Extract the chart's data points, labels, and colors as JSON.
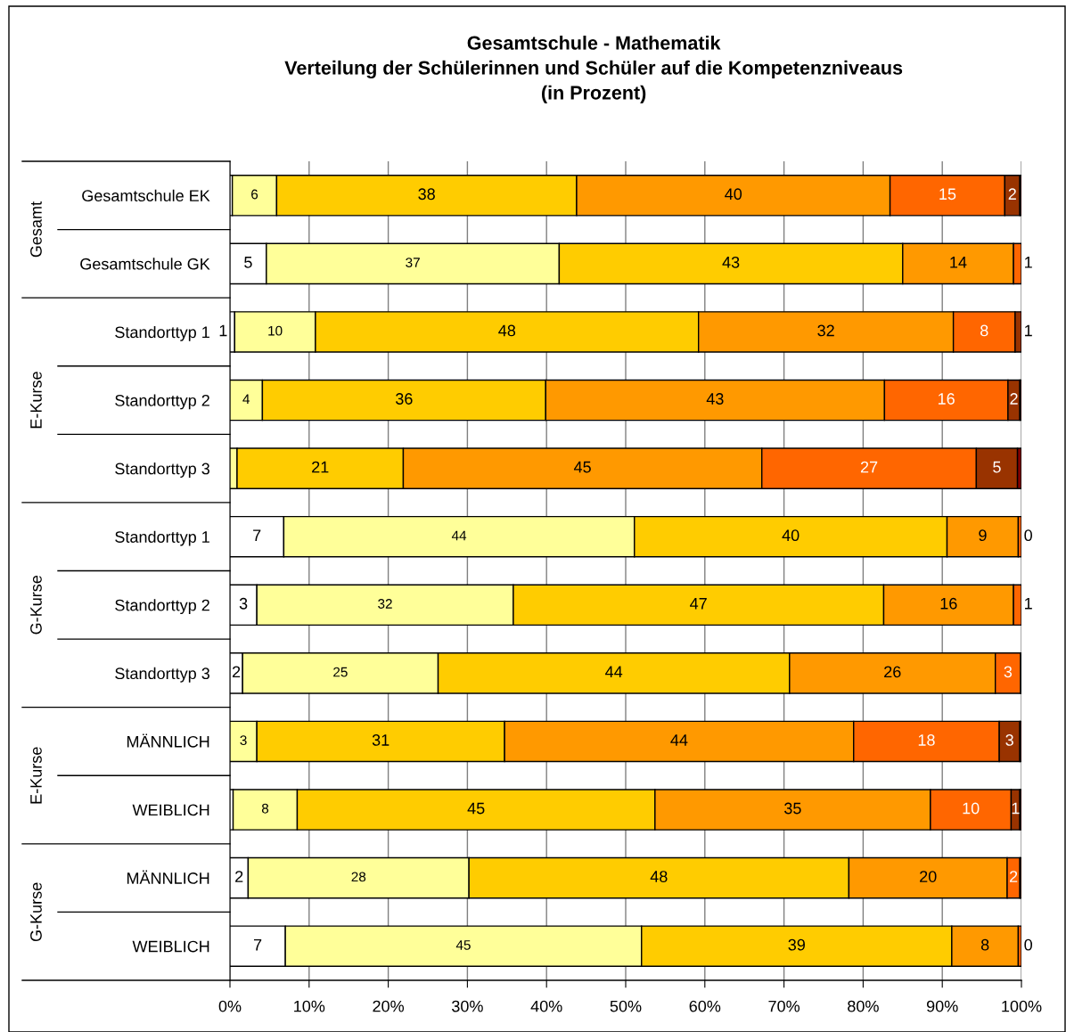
{
  "chart_data": {
    "type": "bar",
    "orientation": "horizontal",
    "stacked": true,
    "title": "Gesamtschule - Mathematik\nVerteilung der Schülerinnen und Schüler auf die Kompetenzniveaus\n(in Prozent)",
    "categories": [
      "Gesamtschule EK",
      "Gesamtschule GK",
      "Standorttyp 1",
      "Standorttyp 2",
      "Standorttyp 3",
      "Standorttyp 1",
      "Standorttyp 2",
      "Standorttyp 3",
      "MÄNNLICH",
      "WEIBLICH",
      "MÄNNLICH",
      "WEIBLICH"
    ],
    "annotations": [
      "Gesamt",
      "E-Kurse",
      "G-Kurse",
      "E-Kurse",
      "G-Kurse"
    ],
    "series": [
      {
        "color": "#ffffff",
        "values": [
          0.3,
          4.6,
          0.6,
          null,
          null,
          6.8,
          3.4,
          1.6,
          null,
          0.4,
          2.3,
          7.0
        ],
        "value_labels": [
          null,
          "5",
          "1",
          null,
          null,
          "7",
          "3",
          "2",
          null,
          null,
          "2",
          "7"
        ]
      },
      {
        "color": "#ffff99",
        "values": [
          5.6,
          37.0,
          10.2,
          4.1,
          0.9,
          44.3,
          32.4,
          24.7,
          3.4,
          8.1,
          27.9,
          45.0
        ],
        "value_labels": [
          "6",
          "37",
          "10",
          "4",
          null,
          "44",
          "32",
          "25",
          "3",
          "8",
          "28",
          "45"
        ]
      },
      {
        "color": "#ffcc00",
        "values": [
          37.9,
          43.4,
          48.4,
          35.8,
          21.0,
          39.5,
          46.8,
          44.4,
          31.3,
          45.2,
          48.0,
          39.2
        ],
        "value_labels": [
          "38",
          "43",
          "48",
          "36",
          "21",
          "40",
          "47",
          "44",
          "31",
          "45",
          "48",
          "39"
        ]
      },
      {
        "color": "#ff9900",
        "values": [
          39.6,
          14.0,
          32.2,
          42.8,
          45.3,
          9.0,
          16.4,
          26.0,
          44.1,
          34.8,
          20.0,
          8.4
        ],
        "value_labels": [
          "40",
          "14",
          "32",
          "43",
          "45",
          "9",
          "16",
          "26",
          "44",
          "35",
          "20",
          "8"
        ]
      },
      {
        "color": "#ff6600",
        "values": [
          14.5,
          1.0,
          7.8,
          15.6,
          27.1,
          0.4,
          1.0,
          3.2,
          18.4,
          10.2,
          1.6,
          0.4
        ],
        "value_labels": [
          "15",
          "1",
          "8",
          "16",
          "27",
          "0",
          "1",
          "3",
          "18",
          "10",
          "2",
          "0"
        ]
      },
      {
        "color": "#993300",
        "values": [
          1.9,
          null,
          0.8,
          1.5,
          5.2,
          null,
          null,
          0.1,
          2.6,
          1.1,
          0.2,
          null
        ],
        "value_labels": [
          "2",
          null,
          "1",
          "2",
          "5",
          null,
          null,
          null,
          "3",
          "1",
          null,
          null
        ]
      },
      {
        "color": "#800000",
        "values": [
          0.2,
          null,
          null,
          0.2,
          0.5,
          null,
          null,
          null,
          0.2,
          0.2,
          null,
          null
        ],
        "value_labels": [
          null,
          null,
          null,
          null,
          null,
          null,
          null,
          null,
          null,
          null,
          null,
          null
        ]
      }
    ],
    "xlim": [
      0,
      100
    ],
    "xticks": [
      {
        "value": 0,
        "label": "0%"
      },
      {
        "value": 10,
        "label": "10%"
      },
      {
        "value": 20,
        "label": "20%"
      },
      {
        "value": 30,
        "label": "30%"
      },
      {
        "value": 40,
        "label": "40%"
      },
      {
        "value": 50,
        "label": "50%"
      },
      {
        "value": 60,
        "label": "60%"
      },
      {
        "value": 70,
        "label": "70%"
      },
      {
        "value": 80,
        "label": "80%"
      },
      {
        "value": 90,
        "label": "90%"
      },
      {
        "value": 100,
        "label": "100%"
      }
    ],
    "grid": "x",
    "legend": false
  }
}
